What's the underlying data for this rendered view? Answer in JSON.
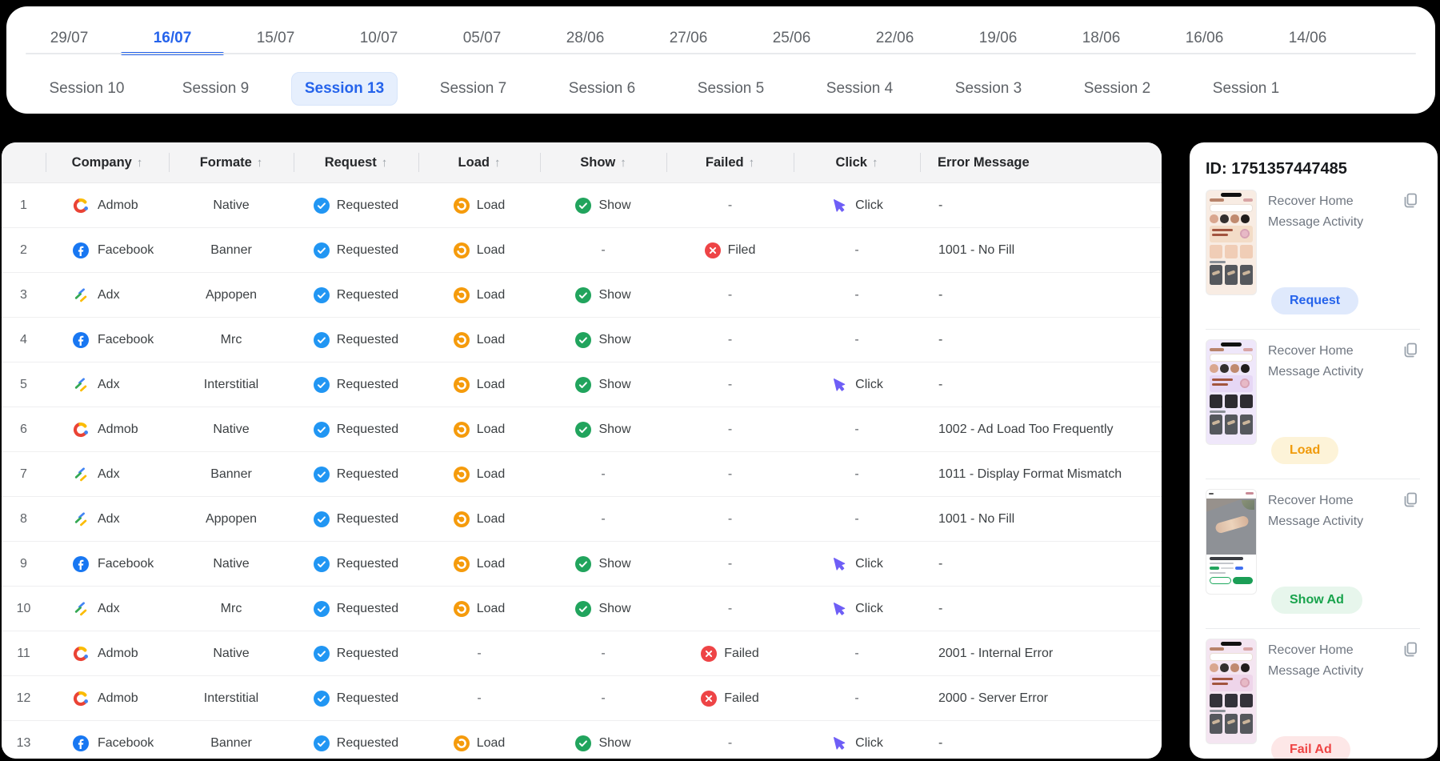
{
  "page": {
    "background": "#000000"
  },
  "date_tabs": {
    "items": [
      "29/07",
      "16/07",
      "15/07",
      "10/07",
      "05/07",
      "28/06",
      "27/06",
      "25/06",
      "22/06",
      "19/06",
      "18/06",
      "16/06",
      "14/06"
    ],
    "active_index": 1
  },
  "session_tabs": {
    "items": [
      "Session 10",
      "Session 9",
      "Session 13",
      "Session 7",
      "Session 6",
      "Session 5",
      "Session 4",
      "Session 3",
      "Session 2",
      "Session 1"
    ],
    "active_index": 2
  },
  "table": {
    "columns": [
      {
        "label": "",
        "sortable": false
      },
      {
        "label": "Company",
        "sortable": true
      },
      {
        "label": "Formate",
        "sortable": true
      },
      {
        "label": "Request",
        "sortable": true
      },
      {
        "label": "Load",
        "sortable": true
      },
      {
        "label": "Show",
        "sortable": true
      },
      {
        "label": "Failed",
        "sortable": true
      },
      {
        "label": "Click",
        "sortable": true
      },
      {
        "label": "Error Message",
        "sortable": false
      }
    ],
    "rows": [
      {
        "num": "1",
        "company": "Admob",
        "formate": "Native",
        "request": "Requested",
        "load": "Load",
        "show": "Show",
        "failed": "-",
        "click": "Click",
        "error": "-"
      },
      {
        "num": "2",
        "company": "Facebook",
        "formate": "Banner",
        "request": "Requested",
        "load": "Load",
        "show": "-",
        "failed": "Filed",
        "click": "-",
        "error": "1001 - No Fill"
      },
      {
        "num": "3",
        "company": "Adx",
        "formate": "Appopen",
        "request": "Requested",
        "load": "Load",
        "show": "Show",
        "failed": "-",
        "click": "-",
        "error": "-"
      },
      {
        "num": "4",
        "company": "Facebook",
        "formate": "Mrc",
        "request": "Requested",
        "load": "Load",
        "show": "Show",
        "failed": "-",
        "click": "-",
        "error": "-"
      },
      {
        "num": "5",
        "company": "Adx",
        "formate": "Interstitial",
        "request": "Requested",
        "load": "Load",
        "show": "Show",
        "failed": "-",
        "click": "Click",
        "error": "-"
      },
      {
        "num": "6",
        "company": "Admob",
        "formate": "Native",
        "request": "Requested",
        "load": "Load",
        "show": "Show",
        "failed": "-",
        "click": "-",
        "error": "1002 - Ad Load Too Frequently"
      },
      {
        "num": "7",
        "company": "Adx",
        "formate": "Banner",
        "request": "Requested",
        "load": "Load",
        "show": "-",
        "failed": "-",
        "click": "-",
        "error": "1011 - Display Format Mismatch"
      },
      {
        "num": "8",
        "company": "Adx",
        "formate": "Appopen",
        "request": "Requested",
        "load": "Load",
        "show": "-",
        "failed": "-",
        "click": "-",
        "error": "1001 - No Fill"
      },
      {
        "num": "9",
        "company": "Facebook",
        "formate": "Native",
        "request": "Requested",
        "load": "Load",
        "show": "Show",
        "failed": "-",
        "click": "Click",
        "error": "-"
      },
      {
        "num": "10",
        "company": "Adx",
        "formate": "Mrc",
        "request": "Requested",
        "load": "Load",
        "show": "Show",
        "failed": "-",
        "click": "Click",
        "error": "-"
      },
      {
        "num": "11",
        "company": "Admob",
        "formate": "Native",
        "request": "Requested",
        "load": "-",
        "show": "-",
        "failed": "Failed",
        "click": "-",
        "error": "2001 - Internal Error"
      },
      {
        "num": "12",
        "company": "Admob",
        "formate": "Interstitial",
        "request": "Requested",
        "load": "-",
        "show": "-",
        "failed": "Failed",
        "click": "-",
        "error": "2000 - Server Error"
      },
      {
        "num": "13",
        "company": "Facebook",
        "formate": "Banner",
        "request": "Requested",
        "load": "Load",
        "show": "Show",
        "failed": "-",
        "click": "Click",
        "error": "-"
      }
    ]
  },
  "detail_panel": {
    "id_label": "ID: 1751357447485",
    "cards": [
      {
        "title": "Recover Home Message Activity",
        "badge": "Request",
        "badge_style": "blue",
        "thumb": "beige"
      },
      {
        "title": "Recover Home Message Activity",
        "badge": "Load",
        "badge_style": "orange",
        "thumb": "lavender"
      },
      {
        "title": "Recover Home Message Activity",
        "badge": "Show Ad",
        "badge_style": "green",
        "thumb": "photo"
      },
      {
        "title": "Recover Home Message Activity",
        "badge": "Fail Ad",
        "badge_style": "red",
        "thumb": "pink"
      }
    ]
  },
  "colors": {
    "accent_blue": "#2563eb",
    "request_blue": "#2196f3",
    "load_orange": "#f59b0c",
    "show_green": "#21a45d",
    "failed_red": "#ee4446",
    "click_purple": "#6e5ef6",
    "facebook_blue": "#1877f2",
    "admob_red": "#ea4335",
    "admob_orange": "#fbbc04",
    "admob_dot_blue": "#4285f4",
    "adx_blue": "#4285f4",
    "adx_green": "#34a853",
    "adx_yellow": "#fbbc04",
    "badge_blue_bg": "#dfe9fc",
    "badge_orange_bg": "#fdf3d8",
    "badge_green_bg": "#e7f6ec",
    "badge_red_bg": "#fde7e7"
  }
}
